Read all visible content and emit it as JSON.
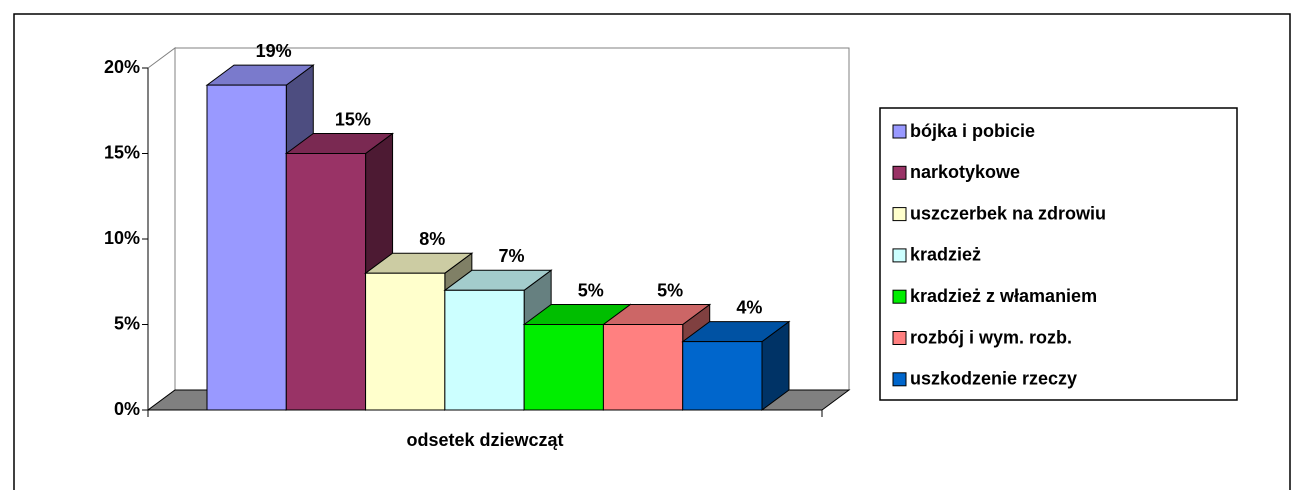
{
  "chart_data": {
    "type": "bar3d",
    "categories": [
      "odsetek dziewcząt"
    ],
    "series": [
      {
        "name": "bójka i pobicie",
        "color": "#9999ff",
        "values": [
          19
        ],
        "value_labels": [
          "19%"
        ]
      },
      {
        "name": "narkotykowe",
        "color": "#993366",
        "values": [
          15
        ],
        "value_labels": [
          "15%"
        ]
      },
      {
        "name": "uszczerbek na zdrowiu",
        "color": "#ffffcc",
        "values": [
          8
        ],
        "value_labels": [
          "8%"
        ]
      },
      {
        "name": "kradzież",
        "color": "#ccffff",
        "values": [
          7
        ],
        "value_labels": [
          "7%"
        ]
      },
      {
        "name": "kradzież z włamaniem",
        "color": "#00ee00",
        "values": [
          5
        ],
        "value_labels": [
          "5%"
        ]
      },
      {
        "name": "rozbój i wym. rozb.",
        "color": "#ff8080",
        "values": [
          5
        ],
        "value_labels": [
          "5%"
        ]
      },
      {
        "name": "uszkodzenie rzeczy",
        "color": "#0066cc",
        "values": [
          4
        ],
        "value_labels": [
          "4%"
        ]
      }
    ],
    "ylim": [
      0,
      20
    ],
    "yticks": [
      {
        "value": 0,
        "label": "0%"
      },
      {
        "value": 5,
        "label": "5%"
      },
      {
        "value": 10,
        "label": "10%"
      },
      {
        "value": 15,
        "label": "15%"
      },
      {
        "value": 20,
        "label": "20%"
      }
    ],
    "legend": "right"
  }
}
